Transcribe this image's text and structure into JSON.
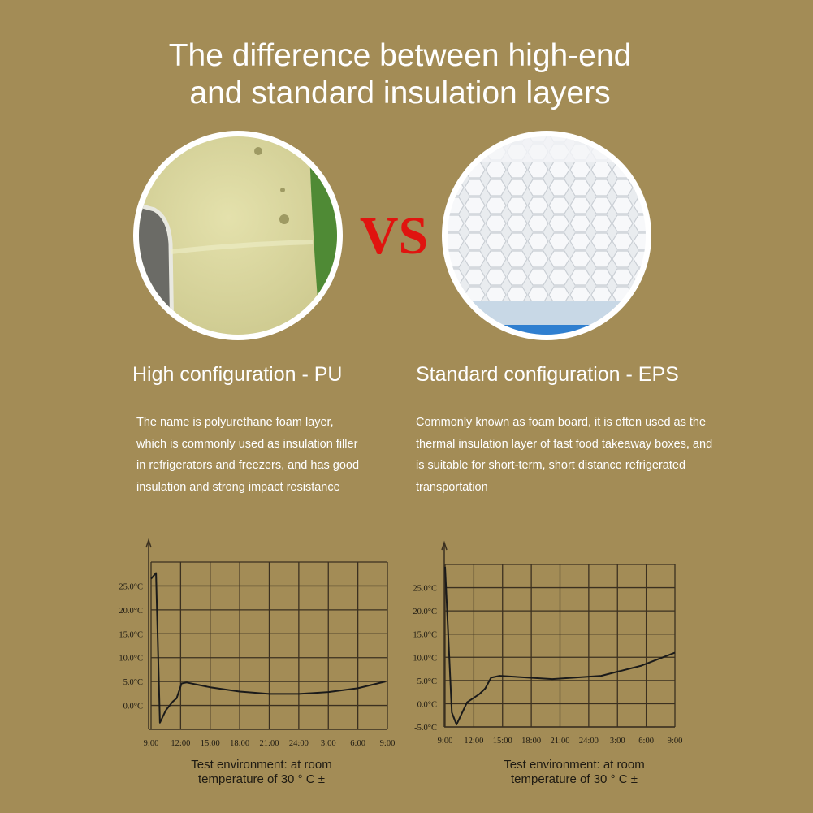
{
  "header": {
    "title": [
      "The difference between high-end",
      "and standard insulation layers"
    ],
    "vs": "VS"
  },
  "products": [
    {
      "name": "High configuration - PU",
      "description": "The name is polyurethane foam layer, which is commonly used as insulation filler in refrigerators and freezers, and has good insulation and strong impact resistance"
    },
    {
      "name": "Standard configuration - EPS",
      "description": "Commonly known as foam board, it is often used as the thermal insulation layer of fast food takeaway boxes, and is suitable for short-term, short distance refrigerated transportation"
    }
  ],
  "chart_data": [
    {
      "type": "line",
      "x": [
        0,
        0.5,
        0.9,
        1.5,
        2.2,
        2.6,
        3.1,
        3.6,
        6,
        9,
        12,
        15,
        18,
        21,
        23.8
      ],
      "series": [
        {
          "color": "#1a1a1a",
          "values": [
            26.5,
            27.7,
            -3.6,
            -1,
            0.8,
            1.5,
            4.6,
            4.8,
            3.8,
            2.9,
            2.4,
            2.4,
            2.8,
            3.6,
            5
          ]
        }
      ],
      "xlim": [
        0,
        24
      ],
      "xticks": [
        {
          "value": 0,
          "label": "9:00"
        },
        {
          "value": 3,
          "label": "12:00"
        },
        {
          "value": 6,
          "label": "15:00"
        },
        {
          "value": 9,
          "label": "18:00"
        },
        {
          "value": 12,
          "label": "21:00"
        },
        {
          "value": 15,
          "label": "24:00"
        },
        {
          "value": 18,
          "label": "3:00"
        },
        {
          "value": 21,
          "label": "6:00"
        },
        {
          "value": 24,
          "label": "9:00"
        }
      ],
      "ylim": [
        -5,
        30
      ],
      "yticks": [
        {
          "value": 0,
          "label": "0.0°C"
        },
        {
          "value": 5,
          "label": "5.0°C"
        },
        {
          "value": 10,
          "label": "10.0°C"
        },
        {
          "value": 15,
          "label": "15.0°C"
        },
        {
          "value": 20,
          "label": "20.0°C"
        },
        {
          "value": 25,
          "label": "25.0°C"
        }
      ],
      "grid": true,
      "caption": [
        "Test environment: at room",
        "temperature of 30 ° C ±"
      ]
    },
    {
      "type": "line",
      "x": [
        0,
        0.7,
        1.2,
        2.3,
        3.6,
        4.2,
        4.8,
        5.7,
        11.2,
        16.3,
        20.5,
        24
      ],
      "series": [
        {
          "color": "#1a1a1a",
          "values": [
            29.5,
            -1.9,
            -4.5,
            0.3,
            2.1,
            3.3,
            5.6,
            6,
            5.3,
            6,
            8.2,
            11
          ]
        }
      ],
      "xlim": [
        0,
        24
      ],
      "xticks": [
        {
          "value": 0,
          "label": "9:00"
        },
        {
          "value": 3,
          "label": "12:00"
        },
        {
          "value": 6,
          "label": "15:00"
        },
        {
          "value": 9,
          "label": "18:00"
        },
        {
          "value": 12,
          "label": "21:00"
        },
        {
          "value": 15,
          "label": "24:00"
        },
        {
          "value": 18,
          "label": "3:00"
        },
        {
          "value": 21,
          "label": "6:00"
        },
        {
          "value": 24,
          "label": "9:00"
        }
      ],
      "ylim": [
        -5,
        30
      ],
      "yticks": [
        {
          "value": -5,
          "label": "-5.0°C"
        },
        {
          "value": 0,
          "label": "0.0°C"
        },
        {
          "value": 5,
          "label": "5.0°C"
        },
        {
          "value": 10,
          "label": "10.0°C"
        },
        {
          "value": 15,
          "label": "15.0°C"
        },
        {
          "value": 20,
          "label": "20.0°C"
        },
        {
          "value": 25,
          "label": "25.0°C"
        }
      ],
      "grid": true,
      "caption": [
        "Test environment: at room",
        "temperature of 30 ° C ±"
      ]
    }
  ]
}
